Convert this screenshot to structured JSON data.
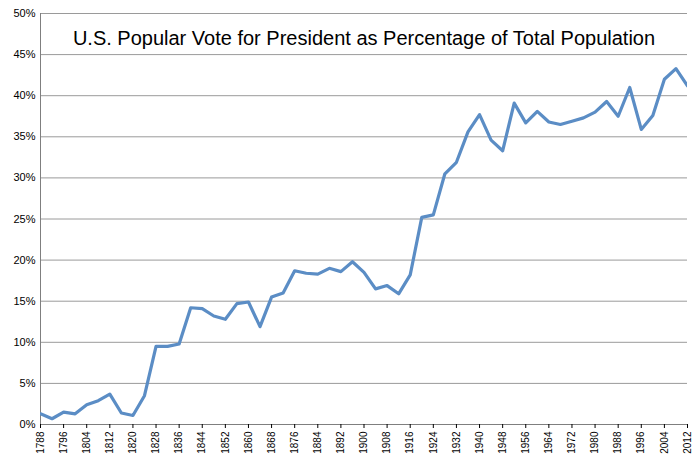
{
  "chart_data": {
    "type": "line",
    "title": "U.S. Popular Vote for President as Percentage of Total Population",
    "x": [
      1788,
      1792,
      1796,
      1800,
      1804,
      1808,
      1812,
      1816,
      1820,
      1824,
      1828,
      1832,
      1836,
      1840,
      1844,
      1848,
      1852,
      1856,
      1860,
      1864,
      1868,
      1872,
      1876,
      1880,
      1884,
      1888,
      1892,
      1896,
      1900,
      1904,
      1908,
      1912,
      1916,
      1920,
      1924,
      1928,
      1932,
      1936,
      1940,
      1944,
      1948,
      1952,
      1956,
      1960,
      1964,
      1968,
      1972,
      1976,
      1980,
      1984,
      1988,
      1992,
      1996,
      2000,
      2004,
      2008,
      2012
    ],
    "values": [
      1.3,
      0.7,
      1.5,
      1.3,
      2.4,
      2.9,
      3.7,
      1.4,
      1.1,
      3.5,
      9.5,
      9.5,
      9.8,
      14.2,
      14.1,
      13.2,
      12.8,
      14.7,
      14.9,
      11.9,
      15.5,
      16.0,
      18.7,
      18.4,
      18.3,
      19.0,
      18.6,
      19.8,
      18.5,
      16.5,
      16.9,
      15.9,
      18.2,
      25.2,
      25.5,
      30.5,
      31.9,
      35.6,
      37.7,
      34.6,
      33.3,
      39.1,
      36.7,
      38.1,
      36.8,
      36.5,
      36.9,
      37.3,
      38.0,
      39.3,
      37.5,
      41.0,
      35.9,
      37.6,
      42.0,
      43.3,
      41.2
    ],
    "color": "#5b8dc5",
    "xlim": [
      1788,
      2012
    ],
    "xticks": [
      1788,
      1796,
      1804,
      1812,
      1820,
      1828,
      1836,
      1844,
      1852,
      1860,
      1868,
      1876,
      1884,
      1892,
      1900,
      1908,
      1916,
      1924,
      1932,
      1940,
      1948,
      1956,
      1964,
      1972,
      1980,
      1988,
      1996,
      2004,
      2012
    ],
    "ylim": [
      0,
      50
    ],
    "yticks": [
      {
        "value": 0,
        "label": "0%"
      },
      {
        "value": 5,
        "label": "5%"
      },
      {
        "value": 10,
        "label": "10%"
      },
      {
        "value": 15,
        "label": "15%"
      },
      {
        "value": 20,
        "label": "20%"
      },
      {
        "value": 25,
        "label": "25%"
      },
      {
        "value": 30,
        "label": "30%"
      },
      {
        "value": 35,
        "label": "35%"
      },
      {
        "value": 40,
        "label": "40%"
      },
      {
        "value": 45,
        "label": "45%"
      },
      {
        "value": 50,
        "label": "50%"
      }
    ],
    "grid": true
  }
}
